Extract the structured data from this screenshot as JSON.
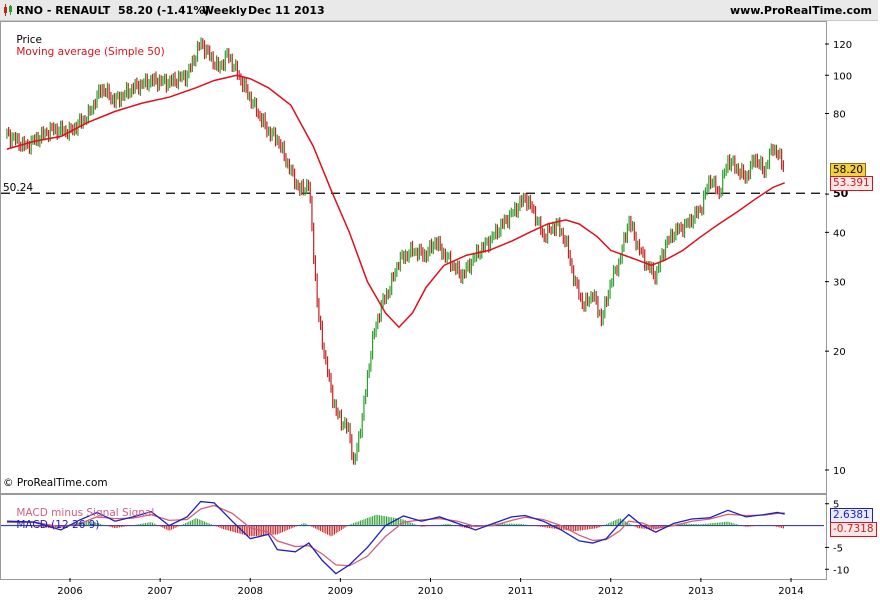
{
  "header": {
    "symbol": "RNO - RENAULT",
    "quote": "58.20 (-1.41%)",
    "period": "Weekly",
    "date": "Dec 11 2013",
    "site": "www.ProRealTime.com"
  },
  "price_panel": {
    "legend_price": "Price",
    "legend_ma": "Moving average (Simple 50)",
    "reference_label": "50.24",
    "reference_axis_label": "50",
    "copyright": "© ProRealTime.com",
    "last_price": "58.20",
    "ma_value": "53.391"
  },
  "macd_panel": {
    "legend_hist": "MACD minus Signal Signal",
    "legend_macd": "MACD (12 26 9)",
    "macd_value": "2.6381",
    "hist_value": "-0.7318"
  },
  "colors": {
    "bar_up": "#2e9e2e",
    "bar_down": "#c22222",
    "moving_average": "#e0101a",
    "macd_line": "#2020b8",
    "signal_line": "#d06080",
    "reference_line": "#000000",
    "price_tag_bg": "#f4d03f",
    "ma_tag_bg": "#fde6e6",
    "header_bg": "#e9e9e9"
  },
  "chart_data": [
    {
      "type": "ohlc",
      "scale": "log",
      "ylim": [
        9.5,
        135
      ],
      "y_ticks": [
        10,
        20,
        30,
        40,
        50,
        80,
        100,
        120
      ],
      "x_ticks": [
        "2006",
        "2007",
        "2008",
        "2009",
        "2010",
        "2011",
        "2012",
        "2013",
        "2014"
      ],
      "horizontal_line": 50.24,
      "series": [
        {
          "name": "Price",
          "points": [
            [
              2005.3,
              71
            ],
            [
              2005.5,
              66
            ],
            [
              2005.8,
              73
            ],
            [
              2006.0,
              72
            ],
            [
              2006.2,
              79
            ],
            [
              2006.35,
              93
            ],
            [
              2006.5,
              86
            ],
            [
              2006.7,
              93
            ],
            [
              2006.9,
              97
            ],
            [
              2007.1,
              96
            ],
            [
              2007.3,
              100
            ],
            [
              2007.45,
              121
            ],
            [
              2007.55,
              112
            ],
            [
              2007.65,
              104
            ],
            [
              2007.75,
              113
            ],
            [
              2007.85,
              102
            ],
            [
              2007.95,
              92
            ],
            [
              2008.05,
              83
            ],
            [
              2008.2,
              72
            ],
            [
              2008.3,
              69
            ],
            [
              2008.45,
              57
            ],
            [
              2008.55,
              51
            ],
            [
              2008.65,
              53
            ],
            [
              2008.75,
              25
            ],
            [
              2008.85,
              18
            ],
            [
              2008.95,
              14
            ],
            [
              2009.1,
              12.5
            ],
            [
              2009.15,
              10.2
            ],
            [
              2009.25,
              14
            ],
            [
              2009.35,
              21
            ],
            [
              2009.45,
              26
            ],
            [
              2009.55,
              29
            ],
            [
              2009.65,
              34
            ],
            [
              2009.8,
              36
            ],
            [
              2009.95,
              35
            ],
            [
              2010.05,
              38
            ],
            [
              2010.2,
              34
            ],
            [
              2010.35,
              31
            ],
            [
              2010.5,
              35
            ],
            [
              2010.65,
              38
            ],
            [
              2010.8,
              42
            ],
            [
              2010.95,
              46
            ],
            [
              2011.05,
              49
            ],
            [
              2011.15,
              45
            ],
            [
              2011.25,
              39
            ],
            [
              2011.4,
              42
            ],
            [
              2011.5,
              38
            ],
            [
              2011.6,
              30
            ],
            [
              2011.7,
              26
            ],
            [
              2011.8,
              28
            ],
            [
              2011.9,
              24
            ],
            [
              2012.0,
              30
            ],
            [
              2012.1,
              34
            ],
            [
              2012.2,
              43
            ],
            [
              2012.3,
              37
            ],
            [
              2012.4,
              33
            ],
            [
              2012.5,
              31
            ],
            [
              2012.6,
              37
            ],
            [
              2012.7,
              40
            ],
            [
              2012.85,
              42
            ],
            [
              2013.0,
              46
            ],
            [
              2013.1,
              55
            ],
            [
              2013.2,
              50
            ],
            [
              2013.3,
              61
            ],
            [
              2013.4,
              58
            ],
            [
              2013.5,
              55
            ],
            [
              2013.6,
              62
            ],
            [
              2013.7,
              57
            ],
            [
              2013.8,
              66
            ],
            [
              2013.87,
              62
            ],
            [
              2013.93,
              58.2
            ]
          ]
        },
        {
          "name": "Moving average (Simple 50)",
          "points": [
            [
              2005.3,
              65
            ],
            [
              2005.6,
              68
            ],
            [
              2005.9,
              70
            ],
            [
              2006.2,
              76
            ],
            [
              2006.5,
              81
            ],
            [
              2006.8,
              85
            ],
            [
              2007.1,
              88
            ],
            [
              2007.4,
              93
            ],
            [
              2007.6,
              97
            ],
            [
              2007.85,
              100
            ],
            [
              2008.0,
              98
            ],
            [
              2008.2,
              93
            ],
            [
              2008.45,
              84
            ],
            [
              2008.7,
              66
            ],
            [
              2008.9,
              51
            ],
            [
              2009.1,
              40
            ],
            [
              2009.3,
              30
            ],
            [
              2009.5,
              25
            ],
            [
              2009.65,
              23
            ],
            [
              2009.8,
              25
            ],
            [
              2009.95,
              29
            ],
            [
              2010.15,
              33
            ],
            [
              2010.4,
              35
            ],
            [
              2010.65,
              36
            ],
            [
              2010.9,
              38
            ],
            [
              2011.1,
              40
            ],
            [
              2011.3,
              42
            ],
            [
              2011.5,
              43
            ],
            [
              2011.65,
              42
            ],
            [
              2011.85,
              39
            ],
            [
              2012.0,
              36
            ],
            [
              2012.15,
              35
            ],
            [
              2012.3,
              34
            ],
            [
              2012.45,
              33
            ],
            [
              2012.6,
              34
            ],
            [
              2012.8,
              36
            ],
            [
              2013.0,
              39
            ],
            [
              2013.2,
              42
            ],
            [
              2013.4,
              45
            ],
            [
              2013.6,
              48.5
            ],
            [
              2013.8,
              52
            ],
            [
              2013.93,
              53.391
            ]
          ]
        }
      ]
    },
    {
      "type": "line",
      "title": "MACD (12 26 9)",
      "ylim": [
        -12,
        7
      ],
      "y_ticks": [
        5,
        -5,
        -10
      ],
      "series": [
        {
          "name": "MACD",
          "points": [
            [
              2005.3,
              1
            ],
            [
              2005.6,
              0.8
            ],
            [
              2005.9,
              -1
            ],
            [
              2006.1,
              1.2
            ],
            [
              2006.3,
              3
            ],
            [
              2006.5,
              1
            ],
            [
              2006.7,
              2
            ],
            [
              2006.9,
              3.2
            ],
            [
              2007.1,
              0
            ],
            [
              2007.3,
              2
            ],
            [
              2007.45,
              5.5
            ],
            [
              2007.6,
              5.2
            ],
            [
              2007.8,
              1
            ],
            [
              2008.0,
              -3
            ],
            [
              2008.2,
              -2
            ],
            [
              2008.3,
              -5.5
            ],
            [
              2008.5,
              -6
            ],
            [
              2008.65,
              -4
            ],
            [
              2008.8,
              -8
            ],
            [
              2008.95,
              -11
            ],
            [
              2009.1,
              -9
            ],
            [
              2009.3,
              -5
            ],
            [
              2009.5,
              0
            ],
            [
              2009.7,
              2.2
            ],
            [
              2009.9,
              1
            ],
            [
              2010.1,
              2
            ],
            [
              2010.3,
              0.5
            ],
            [
              2010.5,
              -1
            ],
            [
              2010.7,
              0.5
            ],
            [
              2010.9,
              2
            ],
            [
              2011.05,
              2.3
            ],
            [
              2011.25,
              1
            ],
            [
              2011.45,
              -1
            ],
            [
              2011.65,
              -3.5
            ],
            [
              2011.8,
              -4
            ],
            [
              2011.95,
              -3
            ],
            [
              2012.1,
              0.5
            ],
            [
              2012.2,
              2.5
            ],
            [
              2012.35,
              0
            ],
            [
              2012.5,
              -1.5
            ],
            [
              2012.7,
              0.5
            ],
            [
              2012.9,
              1.5
            ],
            [
              2013.1,
              1.8
            ],
            [
              2013.3,
              3.5
            ],
            [
              2013.5,
              2
            ],
            [
              2013.7,
              2.5
            ],
            [
              2013.85,
              3
            ],
            [
              2013.93,
              2.6381
            ]
          ]
        },
        {
          "name": "Signal",
          "points": [
            [
              2005.3,
              0.7
            ],
            [
              2005.6,
              0.8
            ],
            [
              2005.9,
              -0.3
            ],
            [
              2006.1,
              0.4
            ],
            [
              2006.3,
              2
            ],
            [
              2006.5,
              1.6
            ],
            [
              2006.7,
              1.7
            ],
            [
              2006.9,
              2.5
            ],
            [
              2007.1,
              1.2
            ],
            [
              2007.3,
              1.4
            ],
            [
              2007.45,
              3.8
            ],
            [
              2007.6,
              4.6
            ],
            [
              2007.8,
              2.8
            ],
            [
              2008.0,
              -0.5
            ],
            [
              2008.2,
              -1.5
            ],
            [
              2008.3,
              -3.5
            ],
            [
              2008.5,
              -4.8
            ],
            [
              2008.65,
              -4.6
            ],
            [
              2008.8,
              -6.5
            ],
            [
              2008.95,
              -9
            ],
            [
              2009.1,
              -9.2
            ],
            [
              2009.3,
              -7
            ],
            [
              2009.5,
              -2.5
            ],
            [
              2009.7,
              0.8
            ],
            [
              2009.9,
              1.3
            ],
            [
              2010.1,
              1.6
            ],
            [
              2010.3,
              1
            ],
            [
              2010.5,
              -0.2
            ],
            [
              2010.7,
              0
            ],
            [
              2010.9,
              1.2
            ],
            [
              2011.05,
              1.9
            ],
            [
              2011.25,
              1.4
            ],
            [
              2011.45,
              0
            ],
            [
              2011.65,
              -2.2
            ],
            [
              2011.8,
              -3.4
            ],
            [
              2011.95,
              -3.2
            ],
            [
              2012.1,
              -1.2
            ],
            [
              2012.2,
              1
            ],
            [
              2012.35,
              0.6
            ],
            [
              2012.5,
              -0.6
            ],
            [
              2012.7,
              0
            ],
            [
              2012.9,
              1
            ],
            [
              2013.1,
              1.5
            ],
            [
              2013.3,
              2.6
            ],
            [
              2013.5,
              2.3
            ],
            [
              2013.7,
              2.4
            ],
            [
              2013.85,
              2.8
            ],
            [
              2013.93,
              2.9
            ]
          ]
        },
        {
          "name": "MACD minus Signal Signal",
          "type": "bar",
          "points": [
            [
              2005.4,
              0.2
            ],
            [
              2005.8,
              -0.6
            ],
            [
              2006.2,
              1.2
            ],
            [
              2006.5,
              -0.6
            ],
            [
              2006.9,
              0.8
            ],
            [
              2007.1,
              -1.2
            ],
            [
              2007.4,
              1.7
            ],
            [
              2007.7,
              -0.8
            ],
            [
              2008.0,
              -2.5
            ],
            [
              2008.3,
              -2
            ],
            [
              2008.6,
              0.6
            ],
            [
              2008.9,
              -2.5
            ],
            [
              2009.1,
              0.2
            ],
            [
              2009.4,
              2.5
            ],
            [
              2009.7,
              1.4
            ],
            [
              2009.9,
              -0.3
            ],
            [
              2010.2,
              0.4
            ],
            [
              2010.4,
              -0.6
            ],
            [
              2010.7,
              0.5
            ],
            [
              2011.0,
              0.4
            ],
            [
              2011.3,
              -0.5
            ],
            [
              2011.6,
              -1.3
            ],
            [
              2011.85,
              -0.6
            ],
            [
              2012.1,
              1.7
            ],
            [
              2012.3,
              -0.6
            ],
            [
              2012.5,
              -0.9
            ],
            [
              2012.75,
              0.5
            ],
            [
              2013.0,
              0.3
            ],
            [
              2013.3,
              0.9
            ],
            [
              2013.5,
              -0.3
            ],
            [
              2013.75,
              0.2
            ],
            [
              2013.93,
              -0.7318
            ]
          ]
        }
      ]
    }
  ]
}
